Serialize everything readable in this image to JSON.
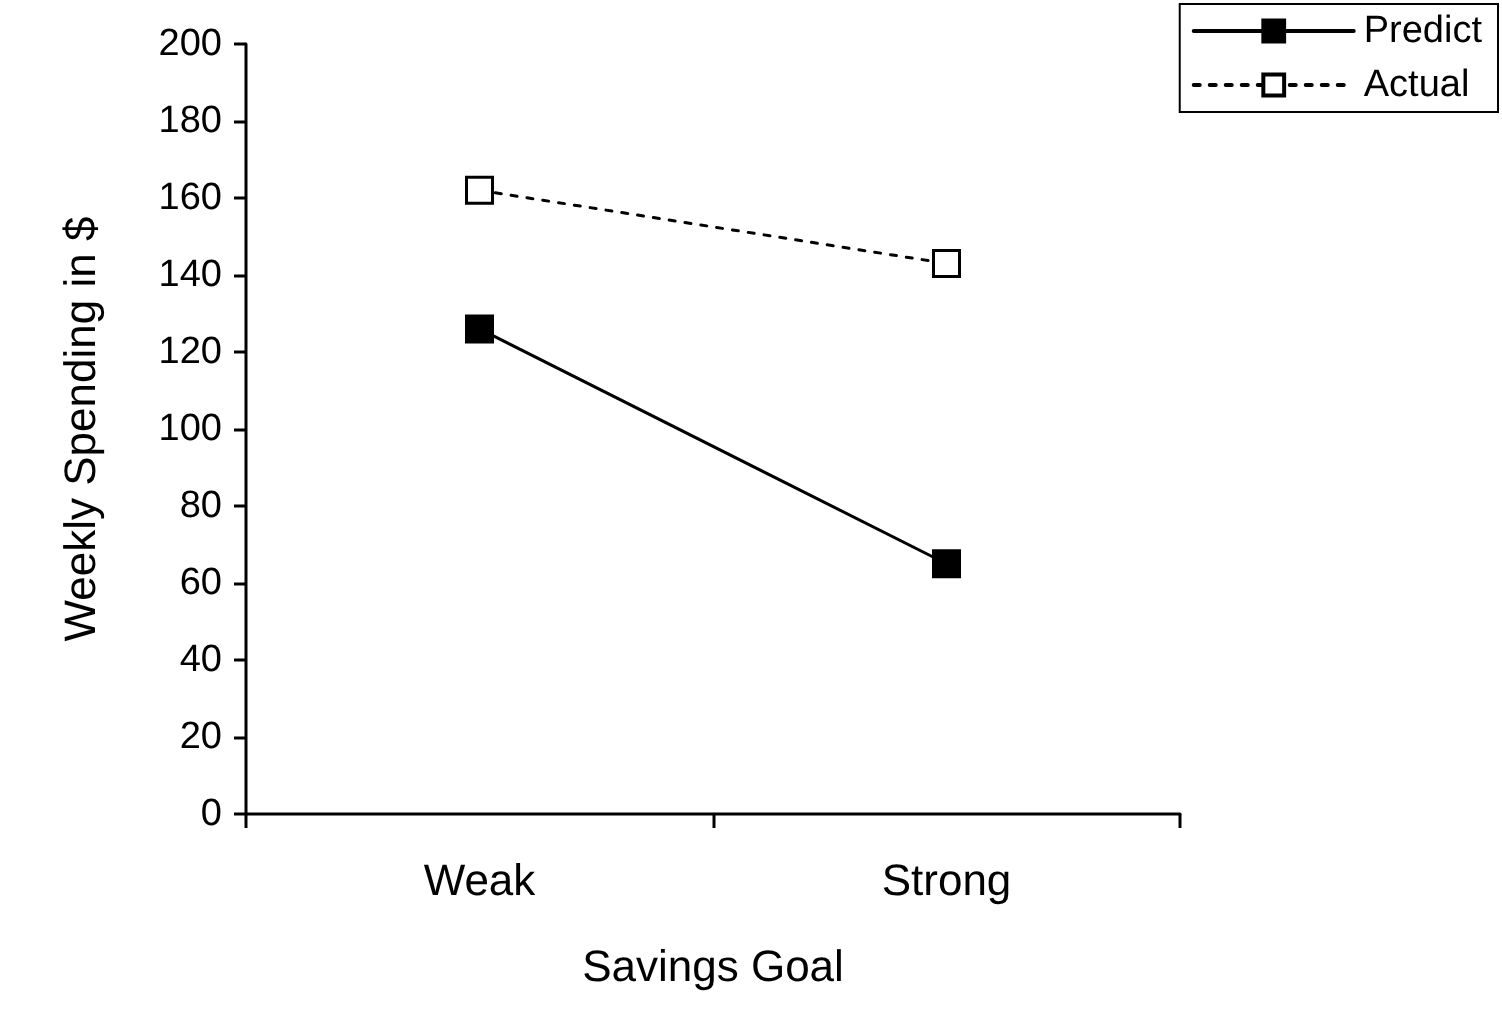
{
  "chart_data": {
    "type": "line",
    "xlabel": "Savings Goal",
    "ylabel": "Weekly Spending in $",
    "categories": [
      "Weak",
      "Strong"
    ],
    "series": [
      {
        "name": "Predict",
        "color": "#000000",
        "values": [
          126,
          65
        ],
        "line_style": "solid"
      },
      {
        "name": "Actual",
        "color": "#000000",
        "values": [
          162,
          143
        ],
        "line_style": "dotted"
      }
    ],
    "ylim": [
      0,
      200
    ],
    "yticks": [
      0,
      20,
      40,
      60,
      80,
      100,
      120,
      140,
      160,
      180,
      200
    ],
    "grid": false,
    "legend": "top right",
    "marker": "square"
  }
}
